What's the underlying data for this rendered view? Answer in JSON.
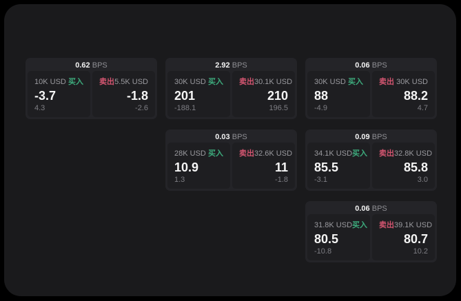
{
  "theme": {
    "background": "#000000",
    "panel_bg": "#1a1a1c",
    "card_bg": "#242428",
    "pane_bg": "#1e1e21",
    "buy_color": "#3dab7d",
    "sell_color": "#d25570",
    "value_color": "#f5f5f5",
    "label_color": "#9a9a9f"
  },
  "labels": {
    "bps_unit": "BPS",
    "buy": "买入",
    "sell": "卖出"
  },
  "cards": [
    {
      "row": 1,
      "col": 1,
      "bps": "0.62",
      "buy": {
        "amount": "10K USD",
        "value": "-3.7",
        "sub": "4.3"
      },
      "sell": {
        "amount": "5.5K USD",
        "value": "-1.8",
        "sub": "-2.6"
      }
    },
    {
      "row": 1,
      "col": 2,
      "bps": "2.92",
      "buy": {
        "amount": "30K USD",
        "value": "201",
        "sub": "-188.1"
      },
      "sell": {
        "amount": "30.1K USD",
        "value": "210",
        "sub": "196.5"
      }
    },
    {
      "row": 1,
      "col": 3,
      "bps": "0.06",
      "buy": {
        "amount": "30K USD",
        "value": "88",
        "sub": "-4.9"
      },
      "sell": {
        "amount": "30K USD",
        "value": "88.2",
        "sub": "4.7"
      }
    },
    {
      "row": 2,
      "col": 2,
      "bps": "0.03",
      "buy": {
        "amount": "28K USD",
        "value": "10.9",
        "sub": "1.3"
      },
      "sell": {
        "amount": "32.6K USD",
        "value": "11",
        "sub": "-1.8"
      }
    },
    {
      "row": 2,
      "col": 3,
      "bps": "0.09",
      "buy": {
        "amount": "34.1K USD",
        "value": "85.5",
        "sub": "-3.1"
      },
      "sell": {
        "amount": "32.8K USD",
        "value": "85.8",
        "sub": "3.0"
      }
    },
    {
      "row": 3,
      "col": 3,
      "bps": "0.06",
      "buy": {
        "amount": "31.8K USD",
        "value": "80.5",
        "sub": "-10.8"
      },
      "sell": {
        "amount": "39.1K USD",
        "value": "80.7",
        "sub": "10.2"
      }
    }
  ]
}
